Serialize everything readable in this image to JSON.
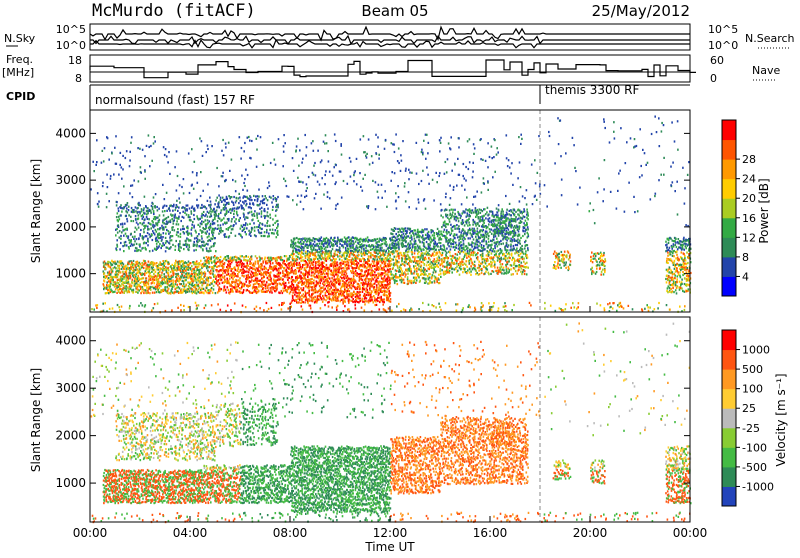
{
  "header": {
    "station": "McMurdo (fitACF)",
    "beam": "Beam 05",
    "date": "25/May/2012"
  },
  "sky_panel": {
    "left_label": "N.Sky",
    "right_label": "N.Search",
    "left_ticks": [
      "10^5",
      "10^0"
    ],
    "right_ticks": [
      "10^5",
      "10^0"
    ]
  },
  "freq_panel": {
    "left_label_1": "Freq.",
    "left_label_2": "[MHz]",
    "right_label": "Nave",
    "left_ticks": [
      "18",
      "8"
    ],
    "right_ticks": [
      "60",
      "0"
    ]
  },
  "cpid": {
    "label": "CPID",
    "modes": [
      {
        "name": "normalsound (fast) 157 RF",
        "start_hour": 0
      },
      {
        "name": "themis 3300 RF",
        "start_hour": 18
      }
    ]
  },
  "chart_data": [
    {
      "type": "heatmap",
      "quantity": "Power",
      "ylabel": "Slant Range [km]",
      "xlabel": "",
      "x_ticks": [
        "00:00",
        "04:00",
        "08:00",
        "12:00",
        "16:00",
        "20:00",
        "00:00"
      ],
      "xlim": [
        0,
        24
      ],
      "ylim": [
        180,
        4500
      ],
      "y_ticks": [
        1000,
        2000,
        3000,
        4000
      ],
      "colorbar": {
        "label": "Power [dB]",
        "ticks": [
          "4",
          "8",
          "12",
          "16",
          "20",
          "24",
          "28"
        ],
        "colors": [
          "#0000ff",
          "#2244aa",
          "#2e8b57",
          "#33aa44",
          "#aacc22",
          "#ffcc00",
          "#ff9900",
          "#ff5500",
          "#ff0000"
        ]
      }
    },
    {
      "type": "heatmap",
      "quantity": "Velocity",
      "ylabel": "Slant Range [km]",
      "xlabel": "Time UT",
      "x_ticks": [
        "00:00",
        "04:00",
        "08:00",
        "12:00",
        "16:00",
        "20:00",
        "00:00"
      ],
      "xlim": [
        0,
        24
      ],
      "ylim": [
        180,
        4500
      ],
      "y_ticks": [
        1000,
        2000,
        3000,
        4000
      ],
      "colorbar": {
        "label": "Velocity [m s⁻¹]",
        "ticks": [
          "1000",
          "500",
          "100",
          "25",
          "-25",
          "-100",
          "-500",
          "-1000"
        ],
        "colors": [
          "#2244bb",
          "#2e8b57",
          "#44bb44",
          "#88cc33",
          "#bbbbbb",
          "#ffcc33",
          "#ff9922",
          "#ff5511",
          "#ff0000"
        ]
      }
    }
  ]
}
